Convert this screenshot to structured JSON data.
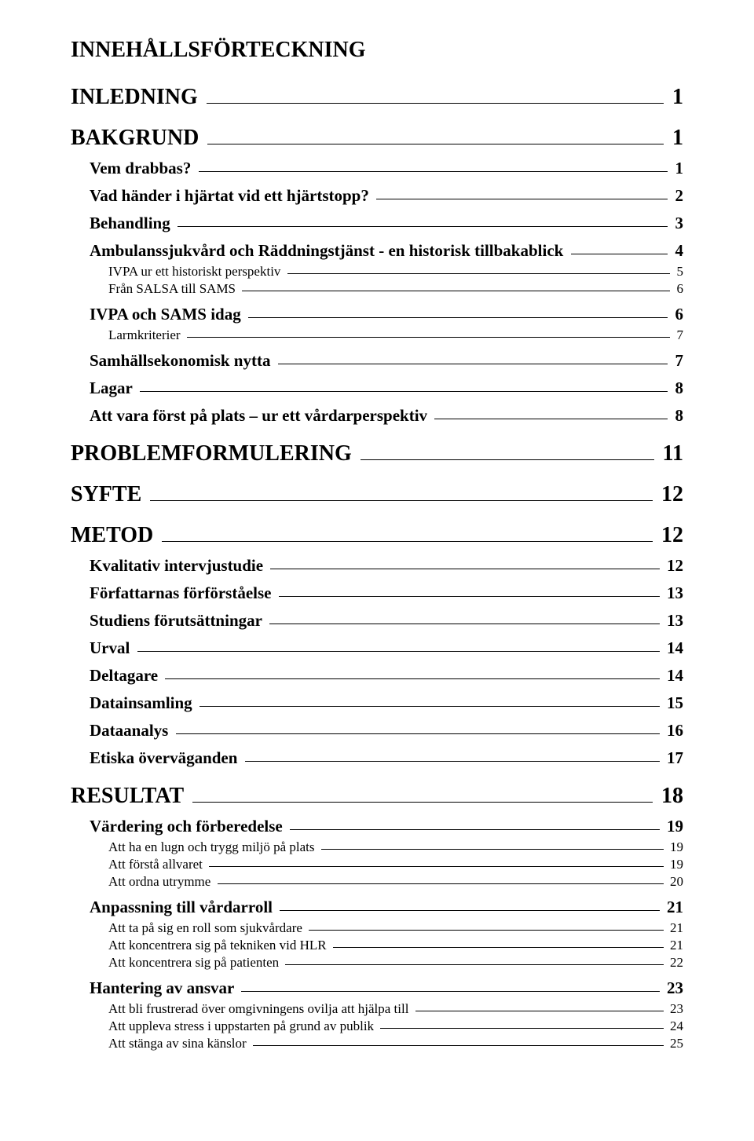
{
  "title": "INNEHÅLLSFÖRTECKNING",
  "entries": [
    {
      "level": 1,
      "label": "INLEDNING ",
      "page": " 1"
    },
    {
      "level": 1,
      "label": "BAKGRUND ",
      "page": " 1"
    },
    {
      "level": 2,
      "label": "Vem drabbas? ",
      "page": " 1"
    },
    {
      "level": 2,
      "label": "Vad händer i hjärtat vid ett hjärtstopp? ",
      "page": " 2"
    },
    {
      "level": 2,
      "label": "Behandling ",
      "page": " 3"
    },
    {
      "level": 2,
      "label": "Ambulanssjukvård och Räddningstjänst - en historisk tillbakablick ",
      "page": " 4"
    },
    {
      "level": 3,
      "label": "IVPA ur ett historiskt perspektiv ",
      "page": " 5"
    },
    {
      "level": 3,
      "label": "Från SALSA till SAMS ",
      "page": " 6"
    },
    {
      "level": 2,
      "label": "IVPA och SAMS idag ",
      "page": " 6"
    },
    {
      "level": 3,
      "label": "Larmkriterier ",
      "page": " 7"
    },
    {
      "level": 2,
      "label": "Samhällsekonomisk nytta ",
      "page": " 7"
    },
    {
      "level": 2,
      "label": "Lagar ",
      "page": " 8"
    },
    {
      "level": 2,
      "label": "Att vara först på plats – ur ett vårdarperspektiv ",
      "page": " 8"
    },
    {
      "level": 1,
      "label": "PROBLEMFORMULERING ",
      "page": " 11"
    },
    {
      "level": 1,
      "label": "SYFTE ",
      "page": " 12"
    },
    {
      "level": 1,
      "label": "METOD ",
      "page": " 12"
    },
    {
      "level": 2,
      "label": "Kvalitativ intervjustudie ",
      "page": " 12"
    },
    {
      "level": 2,
      "label": "Författarnas förförståelse ",
      "page": " 13"
    },
    {
      "level": 2,
      "label": "Studiens förutsättningar ",
      "page": " 13"
    },
    {
      "level": 2,
      "label": "Urval ",
      "page": " 14"
    },
    {
      "level": 2,
      "label": "Deltagare ",
      "page": " 14"
    },
    {
      "level": 2,
      "label": "Datainsamling ",
      "page": " 15"
    },
    {
      "level": 2,
      "label": "Dataanalys ",
      "page": " 16"
    },
    {
      "level": 2,
      "label": "Etiska överväganden ",
      "page": " 17"
    },
    {
      "level": 1,
      "label": "RESULTAT ",
      "page": " 18"
    },
    {
      "level": 2,
      "label": "Värdering och förberedelse ",
      "page": " 19"
    },
    {
      "level": 3,
      "label": "Att ha en lugn och trygg miljö på plats ",
      "page": " 19"
    },
    {
      "level": 3,
      "label": "Att förstå allvaret ",
      "page": " 19"
    },
    {
      "level": 3,
      "label": "Att ordna utrymme ",
      "page": " 20"
    },
    {
      "level": 2,
      "label": "Anpassning till vårdarroll ",
      "page": " 21"
    },
    {
      "level": 3,
      "label": "Att ta på sig en roll som sjukvårdare ",
      "page": " 21"
    },
    {
      "level": 3,
      "label": "Att koncentrera sig på tekniken vid HLR ",
      "page": " 21"
    },
    {
      "level": 3,
      "label": "Att koncentrera sig på patienten ",
      "page": " 22"
    },
    {
      "level": 2,
      "label": "Hantering av ansvar ",
      "page": " 23"
    },
    {
      "level": 3,
      "label": "Att bli frustrerad över omgivningens ovilja att hjälpa till ",
      "page": " 23"
    },
    {
      "level": 3,
      "label": "Att uppleva stress i uppstarten på grund av publik ",
      "page": " 24"
    },
    {
      "level": 3,
      "label": "Att stänga av sina känslor ",
      "page": " 25"
    }
  ]
}
